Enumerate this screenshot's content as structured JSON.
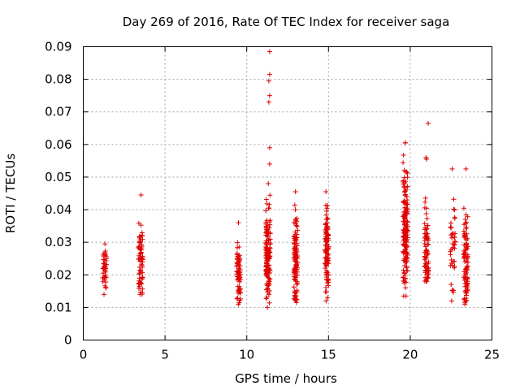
{
  "chart_data": {
    "type": "scatter",
    "title": "Day 269 of 2016, Rate Of TEC Index for receiver saga",
    "xlabel": "GPS time / hours",
    "ylabel": "ROTI / TECUs",
    "xlim": [
      0,
      25
    ],
    "ylim": [
      0,
      0.09
    ],
    "xticks": [
      0,
      5,
      10,
      15,
      20,
      25
    ],
    "xtick_labels": [
      "0",
      "5",
      "10",
      "15",
      "20",
      "25"
    ],
    "yticks": [
      0,
      0.01,
      0.02,
      0.03,
      0.04,
      0.05,
      0.06,
      0.07,
      0.08,
      0.09
    ],
    "ytick_labels": [
      "0",
      "0.01",
      "0.02",
      "0.03",
      "0.04",
      "0.05",
      "0.06",
      "0.07",
      "0.08",
      "0.09"
    ],
    "grid": true,
    "marker": "+",
    "color": "#e00000",
    "clusters": [
      {
        "x_center": 1.3,
        "x_spread": 0.12,
        "count": 45,
        "y_min": 0.014,
        "y_max": 0.0295,
        "y_mean": 0.022
      },
      {
        "x_center": 3.5,
        "x_spread": 0.14,
        "count": 70,
        "y_min": 0.014,
        "y_max": 0.0445,
        "y_mean": 0.024
      },
      {
        "x_center": 9.5,
        "x_spread": 0.12,
        "count": 65,
        "y_min": 0.011,
        "y_max": 0.036,
        "y_mean": 0.021
      },
      {
        "x_center": 11.3,
        "x_spread": 0.14,
        "count": 140,
        "y_min": 0.01,
        "y_max": 0.048,
        "y_mean": 0.026
      },
      {
        "x_center": 13.0,
        "x_spread": 0.12,
        "count": 110,
        "y_min": 0.0115,
        "y_max": 0.0455,
        "y_mean": 0.025
      },
      {
        "x_center": 14.9,
        "x_spread": 0.12,
        "count": 100,
        "y_min": 0.012,
        "y_max": 0.0455,
        "y_mean": 0.028
      },
      {
        "x_center": 19.7,
        "x_spread": 0.14,
        "count": 160,
        "y_min": 0.0135,
        "y_max": 0.0605,
        "y_mean": 0.033
      },
      {
        "x_center": 21.0,
        "x_spread": 0.12,
        "count": 80,
        "y_min": 0.018,
        "y_max": 0.056,
        "y_mean": 0.027
      },
      {
        "x_center": 22.6,
        "x_spread": 0.15,
        "count": 40,
        "y_min": 0.012,
        "y_max": 0.0525,
        "y_mean": 0.029
      },
      {
        "x_center": 23.4,
        "x_spread": 0.13,
        "count": 95,
        "y_min": 0.011,
        "y_max": 0.0525,
        "y_mean": 0.024
      }
    ],
    "outliers": [
      {
        "x": 11.4,
        "y": 0.0885
      },
      {
        "x": 11.4,
        "y": 0.0815
      },
      {
        "x": 11.35,
        "y": 0.0795
      },
      {
        "x": 11.4,
        "y": 0.075
      },
      {
        "x": 11.35,
        "y": 0.073
      },
      {
        "x": 11.4,
        "y": 0.059
      },
      {
        "x": 11.4,
        "y": 0.054
      },
      {
        "x": 21.1,
        "y": 0.0665
      },
      {
        "x": 21.0,
        "y": 0.0555
      },
      {
        "x": 19.7,
        "y": 0.0605
      },
      {
        "x": 19.6,
        "y": 0.0135
      }
    ]
  }
}
